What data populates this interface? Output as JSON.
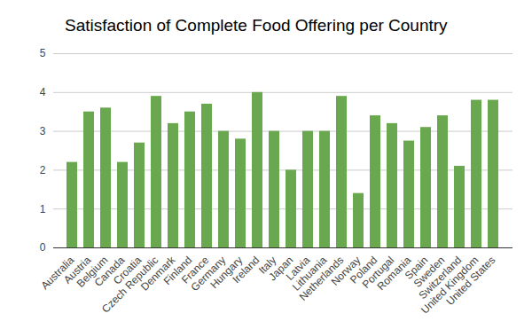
{
  "chart_data": {
    "type": "bar",
    "title": "Satisfaction of Complete Food Offering per Country",
    "categories": [
      "Australia",
      "Austria",
      "Belgium",
      "Canada",
      "Croatia",
      "Czech Republic",
      "Denmark",
      "Finland",
      "France",
      "Germany",
      "Hungary",
      "Ireland",
      "Italy",
      "Japan",
      "Latvia",
      "Lithuania",
      "Netherlands",
      "Norway",
      "Poland",
      "Portugal",
      "Romania",
      "Spain",
      "Sweden",
      "Switzerland",
      "United Kingdom",
      "United States"
    ],
    "values": [
      2.2,
      3.5,
      3.6,
      2.2,
      2.7,
      3.9,
      3.2,
      3.5,
      3.7,
      3.0,
      2.8,
      4.0,
      3.0,
      2.0,
      3.0,
      3.0,
      3.9,
      1.4,
      3.4,
      3.2,
      2.75,
      3.1,
      3.4,
      2.1,
      3.8,
      3.8
    ],
    "color": "#6aa84f",
    "ylim": [
      0,
      5
    ],
    "yticks": [
      0,
      1,
      2,
      3,
      4,
      5
    ],
    "grid": true
  }
}
